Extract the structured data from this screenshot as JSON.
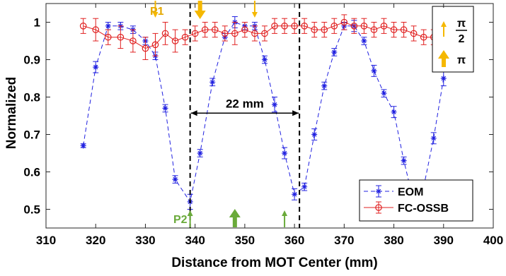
{
  "chart_data": {
    "type": "line",
    "title": "",
    "xlabel": "Distance from MOT Center (mm)",
    "ylabel": "Normalized",
    "xlim": [
      310,
      400
    ],
    "ylim": [
      0.45,
      1.05
    ],
    "xticks": [
      "310",
      "320",
      "330",
      "340",
      "350",
      "360",
      "370",
      "380",
      "390",
      "400"
    ],
    "yticks": [
      "0.5",
      "0.6",
      "0.7",
      "0.8",
      "0.9",
      "1"
    ],
    "grid": false,
    "legend_position": "bottom-right",
    "series": [
      {
        "name": "EOM",
        "color": "#2020e0",
        "marker": "asterisk",
        "linestyle": "dashed",
        "x": [
          317.5,
          320,
          322.5,
          325,
          327.5,
          330,
          332,
          334,
          336,
          339,
          341,
          343.5,
          346,
          348,
          350,
          352,
          354,
          356,
          358,
          360,
          362,
          364,
          366,
          368,
          370,
          372,
          374,
          376,
          378,
          380,
          382,
          384,
          386,
          388,
          390
        ],
        "y": [
          0.67,
          0.88,
          0.99,
          0.99,
          0.98,
          0.95,
          0.91,
          0.77,
          0.58,
          0.52,
          0.65,
          0.84,
          0.96,
          1.0,
          0.99,
          0.99,
          0.9,
          0.78,
          0.65,
          0.54,
          0.56,
          0.7,
          0.83,
          0.92,
          0.99,
          0.99,
          0.95,
          0.87,
          0.81,
          0.76,
          0.63,
          0.52,
          0.56,
          0.69,
          0.85
        ],
        "err": [
          0.005,
          0.015,
          0.01,
          0.01,
          0.01,
          0.01,
          0.01,
          0.01,
          0.01,
          0.02,
          0.01,
          0.01,
          0.01,
          0.015,
          0.01,
          0.01,
          0.01,
          0.02,
          0.015,
          0.015,
          0.01,
          0.015,
          0.01,
          0.01,
          0.01,
          0.015,
          0.01,
          0.015,
          0.01,
          0.015,
          0.01,
          0.01,
          0.01,
          0.015,
          0.02
        ]
      },
      {
        "name": "FC-OSSB",
        "color": "#e02020",
        "marker": "circle",
        "linestyle": "solid",
        "x": [
          317.5,
          320,
          322.5,
          325,
          327.5,
          330,
          332,
          334,
          336,
          338,
          340,
          342,
          344,
          346,
          348,
          350,
          352,
          354,
          356,
          358,
          360,
          362,
          364,
          366,
          368,
          370,
          372,
          374,
          376,
          378,
          380,
          382,
          384,
          386,
          388
        ],
        "y": [
          0.99,
          0.98,
          0.96,
          0.96,
          0.95,
          0.93,
          0.94,
          0.97,
          0.95,
          0.96,
          0.97,
          0.98,
          0.98,
          0.97,
          0.97,
          0.98,
          0.97,
          0.97,
          0.99,
          0.99,
          0.99,
          0.99,
          0.98,
          0.98,
          0.99,
          1.0,
          0.99,
          0.99,
          0.98,
          0.99,
          0.98,
          0.98,
          0.97,
          0.96,
          0.96
        ],
        "err": [
          0.02,
          0.03,
          0.02,
          0.03,
          0.03,
          0.03,
          0.03,
          0.03,
          0.03,
          0.02,
          0.02,
          0.02,
          0.02,
          0.02,
          0.03,
          0.02,
          0.02,
          0.02,
          0.02,
          0.02,
          0.02,
          0.02,
          0.02,
          0.02,
          0.02,
          0.02,
          0.02,
          0.02,
          0.02,
          0.02,
          0.02,
          0.02,
          0.02,
          0.02,
          0.02
        ]
      }
    ],
    "vlines": [
      339,
      361
    ],
    "annotations": {
      "span_label": "22 mm",
      "span_from": 339,
      "span_to": 361,
      "span_y": 0.757,
      "p1_label": "P1",
      "p2_label": "P2",
      "top_arrows": [
        {
          "x": 332,
          "size": "thin"
        },
        {
          "x": 341,
          "size": "thick"
        },
        {
          "x": 352,
          "size": "thin"
        }
      ],
      "bottom_arrows": [
        {
          "x": 339,
          "size": "thin"
        },
        {
          "x": 348,
          "size": "thick"
        },
        {
          "x": 358,
          "size": "thin"
        }
      ],
      "top_arrow_color": "#f5b800",
      "bottom_arrow_color": "#6aaa3a",
      "arrow_legend": {
        "pi_symbol": "π",
        "two": "2"
      }
    }
  }
}
